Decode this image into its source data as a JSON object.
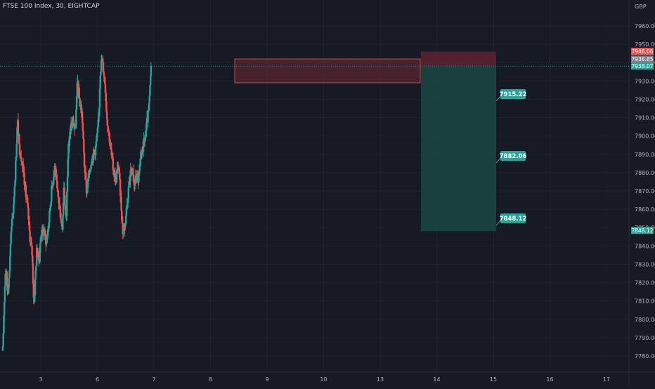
{
  "header": {
    "title": "FTSE 100 Index, 30, EIGHTCAP"
  },
  "colors": {
    "background": "#161a25",
    "up": "#26a69a",
    "down": "#ef5350",
    "grid": "#1e222d",
    "text": "#b2b5be",
    "profit_zone": "#1b4d47",
    "stop_zone": "#5a2230",
    "supply_zone": "#6e2a33",
    "current_line": "#2a8c89"
  },
  "chart_data": {
    "type": "candlestick",
    "title": "FTSE 100 Index, 30, EIGHTCAP",
    "currency": "GBP",
    "x_ticks": [
      "3",
      "6",
      "7",
      "8",
      "9",
      "10",
      "13",
      "14",
      "15",
      "16",
      "17"
    ],
    "y_ticks": [
      7780,
      7790,
      7800,
      7810,
      7820,
      7830,
      7840,
      7850,
      7860,
      7870,
      7880,
      7890,
      7900,
      7910,
      7920,
      7930,
      7940,
      7950,
      7960
    ],
    "ylim": [
      7772,
      7977
    ],
    "price_path": [
      [
        0,
        7783
      ],
      [
        0.02,
        7805
      ],
      [
        0.05,
        7830
      ],
      [
        0.08,
        7816
      ],
      [
        0.11,
        7822
      ],
      [
        0.14,
        7845
      ],
      [
        0.18,
        7858
      ],
      [
        0.22,
        7880
      ],
      [
        0.26,
        7908
      ],
      [
        0.29,
        7894
      ],
      [
        0.33,
        7888
      ],
      [
        0.37,
        7880
      ],
      [
        0.4,
        7870
      ],
      [
        0.44,
        7860
      ],
      [
        0.47,
        7848
      ],
      [
        0.52,
        7835
      ],
      [
        0.55,
        7808
      ],
      [
        0.6,
        7838
      ],
      [
        0.64,
        7832
      ],
      [
        0.68,
        7848
      ],
      [
        0.73,
        7848
      ],
      [
        0.77,
        7842
      ],
      [
        0.82,
        7855
      ],
      [
        0.86,
        7870
      ],
      [
        0.92,
        7885
      ],
      [
        0.96,
        7870
      ],
      [
        1.0,
        7862
      ],
      [
        1.05,
        7850
      ],
      [
        1.08,
        7873
      ],
      [
        1.12,
        7852
      ],
      [
        1.15,
        7890
      ],
      [
        1.2,
        7905
      ],
      [
        1.25,
        7908
      ],
      [
        1.28,
        7902
      ],
      [
        1.32,
        7930
      ],
      [
        1.36,
        7918
      ],
      [
        1.4,
        7912
      ],
      [
        1.44,
        7885
      ],
      [
        1.48,
        7870
      ],
      [
        1.52,
        7878
      ],
      [
        1.57,
        7888
      ],
      [
        1.63,
        7892
      ],
      [
        1.67,
        7900
      ],
      [
        1.7,
        7912
      ],
      [
        1.72,
        7935
      ],
      [
        1.75,
        7942
      ],
      [
        1.78,
        7936
      ],
      [
        1.81,
        7928
      ],
      [
        1.84,
        7910
      ],
      [
        1.88,
        7900
      ],
      [
        1.92,
        7890
      ],
      [
        1.96,
        7880
      ],
      [
        2.0,
        7876
      ],
      [
        2.04,
        7885
      ],
      [
        2.08,
        7868
      ],
      [
        2.12,
        7848
      ],
      [
        2.16,
        7852
      ],
      [
        2.2,
        7865
      ],
      [
        2.24,
        7876
      ],
      [
        2.28,
        7884
      ],
      [
        2.32,
        7872
      ],
      [
        2.36,
        7878
      ],
      [
        2.4,
        7876
      ],
      [
        2.44,
        7888
      ],
      [
        2.48,
        7894
      ],
      [
        2.52,
        7900
      ],
      [
        2.56,
        7910
      ],
      [
        2.58,
        7914
      ],
      [
        2.6,
        7924
      ],
      [
        2.62,
        7938
      ]
    ],
    "supply_zone": {
      "top": 7942,
      "bottom": 7929
    },
    "position": {
      "entry": 7938.07,
      "stop": 7946.06,
      "targets": [
        {
          "label": "7915.22",
          "value": 7915.22
        },
        {
          "label": "7882.06",
          "value": 7882.06
        },
        {
          "label": "7848.12",
          "value": 7848.12
        }
      ]
    },
    "price_labels": [
      {
        "label": "7946.06",
        "value": 7946.06,
        "color": "#ef5350"
      },
      {
        "label": "7938.85",
        "value": 7938.85,
        "color": "#7a7f8b"
      },
      {
        "label": "7938.07",
        "value": 7938.07,
        "color": "#26a69a"
      },
      {
        "label": "7848.12",
        "value": 7848.12,
        "color": "#26a69a"
      }
    ]
  }
}
